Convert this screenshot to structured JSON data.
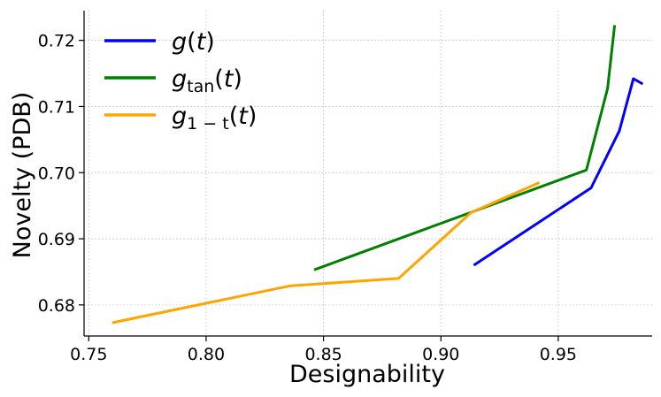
{
  "chart_data": {
    "type": "line",
    "xlabel": "Designability",
    "ylabel": "Novelty (PDB)",
    "xlim": [
      0.748,
      0.99
    ],
    "ylim": [
      0.6753,
      0.7245
    ],
    "xticks": [
      0.75,
      0.8,
      0.85,
      0.9,
      0.95
    ],
    "xtick_labels": [
      "0.75",
      "0.80",
      "0.85",
      "0.90",
      "0.95"
    ],
    "yticks": [
      0.68,
      0.69,
      0.7,
      0.71,
      0.72
    ],
    "ytick_labels": [
      "0.68",
      "0.69",
      "0.70",
      "0.71",
      "0.72"
    ],
    "grid": true,
    "legend_position": "top-left",
    "series": [
      {
        "name": "g(t)",
        "label_base": "g",
        "label_sub": "",
        "label_arg": "(t)",
        "color": "#0000ff",
        "x": [
          0.914,
          0.964,
          0.976,
          0.982,
          0.986
        ],
        "y": [
          0.686,
          0.6977,
          0.7063,
          0.7142,
          0.7134
        ]
      },
      {
        "name": "g_tan(t)",
        "label_base": "g",
        "label_sub": "tan",
        "label_arg": "(t)",
        "color": "#008000",
        "x": [
          0.846,
          0.962,
          0.971,
          0.974
        ],
        "y": [
          0.6853,
          0.7004,
          0.7127,
          0.7223
        ]
      },
      {
        "name": "g_1-t(t)",
        "label_base": "g",
        "label_sub": "1 − t",
        "label_arg": "(t)",
        "color": "#ffa500",
        "x": [
          0.76,
          0.836,
          0.882,
          0.913,
          0.942
        ],
        "y": [
          0.6773,
          0.6829,
          0.684,
          0.694,
          0.6985
        ]
      }
    ]
  }
}
